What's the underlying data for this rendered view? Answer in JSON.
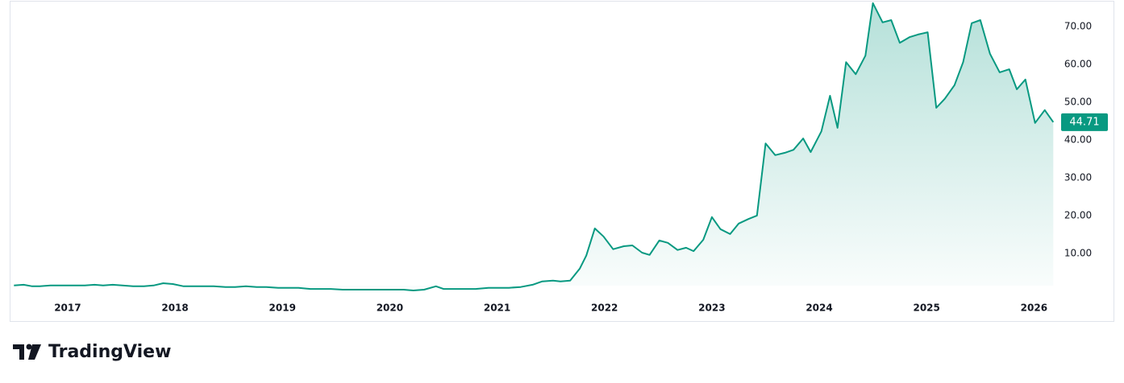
{
  "chart_data": {
    "type": "area",
    "x": [
      2016.5,
      2016.59,
      2016.67,
      2016.74,
      2016.84,
      2016.93,
      2017.05,
      2017.16,
      2017.25,
      2017.33,
      2017.42,
      2017.51,
      2017.61,
      2017.71,
      2017.8,
      2017.89,
      2017.98,
      2018.08,
      2018.17,
      2018.29,
      2018.36,
      2018.47,
      2018.56,
      2018.66,
      2018.76,
      2018.85,
      2018.96,
      2019.06,
      2019.15,
      2019.26,
      2019.36,
      2019.45,
      2019.56,
      2019.65,
      2019.75,
      2019.84,
      2019.94,
      2020.04,
      2020.13,
      2020.22,
      2020.32,
      2020.43,
      2020.5,
      2020.59,
      2020.69,
      2020.8,
      2020.92,
      2021.02,
      2021.11,
      2021.22,
      2021.33,
      2021.42,
      2021.52,
      2021.59,
      2021.68,
      2021.77,
      2021.83,
      2021.91,
      2021.99,
      2022.08,
      2022.18,
      2022.26,
      2022.35,
      2022.42,
      2022.51,
      2022.59,
      2022.68,
      2022.76,
      2022.83,
      2022.92,
      2023.0,
      2023.08,
      2023.17,
      2023.25,
      2023.34,
      2023.42,
      2023.5,
      2023.59,
      2023.68,
      2023.76,
      2023.85,
      2023.92,
      2024.02,
      2024.1,
      2024.17,
      2024.25,
      2024.34,
      2024.43,
      2024.5,
      2024.59,
      2024.67,
      2024.75,
      2024.84,
      2024.92,
      2025.01,
      2025.09,
      2025.17,
      2025.26,
      2025.34,
      2025.42,
      2025.5,
      2025.59,
      2025.68,
      2025.77,
      2025.84,
      2025.92,
      2026.01,
      2026.1,
      2026.18
    ],
    "values": [
      1.5,
      1.7,
      1.3,
      1.3,
      1.5,
      1.5,
      1.5,
      1.5,
      1.7,
      1.5,
      1.7,
      1.5,
      1.3,
      1.3,
      1.5,
      2.1,
      1.9,
      1.3,
      1.3,
      1.3,
      1.3,
      1.1,
      1.1,
      1.3,
      1.1,
      1.1,
      0.9,
      0.9,
      0.9,
      0.6,
      0.6,
      0.6,
      0.4,
      0.4,
      0.4,
      0.4,
      0.4,
      0.4,
      0.4,
      0.2,
      0.4,
      1.3,
      0.6,
      0.6,
      0.6,
      0.6,
      0.9,
      0.9,
      0.9,
      1.1,
      1.7,
      2.6,
      2.8,
      2.6,
      2.8,
      6.0,
      9.4,
      16.6,
      14.5,
      11.1,
      11.9,
      12.1,
      10.2,
      9.6,
      13.4,
      12.8,
      10.9,
      11.5,
      10.6,
      13.6,
      19.6,
      16.4,
      15.1,
      17.9,
      19.1,
      20.0,
      39.1,
      36.0,
      36.6,
      37.4,
      40.4,
      36.8,
      42.3,
      51.7,
      43.2,
      60.6,
      57.4,
      62.3,
      76.2,
      71.1,
      71.7,
      65.7,
      67.2,
      67.9,
      68.5,
      48.5,
      50.9,
      54.5,
      60.6,
      70.9,
      71.7,
      62.8,
      57.9,
      58.7,
      53.4,
      56.0,
      44.5,
      47.9,
      44.71
    ],
    "color": "#089981",
    "xlim": [
      2016.46,
      2026.17
    ],
    "xticks": [
      2017,
      2018,
      2019,
      2020,
      2021,
      2022,
      2023,
      2024,
      2025,
      2026
    ],
    "ylim": [
      -1.3,
      76.6
    ],
    "yticks": [
      {
        "value": 10,
        "label": "10.00"
      },
      {
        "value": 20,
        "label": "20.00"
      },
      {
        "value": 30,
        "label": "30.00"
      },
      {
        "value": 40,
        "label": "40.00"
      },
      {
        "value": 50,
        "label": "50.00"
      },
      {
        "value": 60,
        "label": "60.00"
      },
      {
        "value": 70,
        "label": "70.00"
      }
    ],
    "grid": false
  },
  "brand": "TradingView"
}
